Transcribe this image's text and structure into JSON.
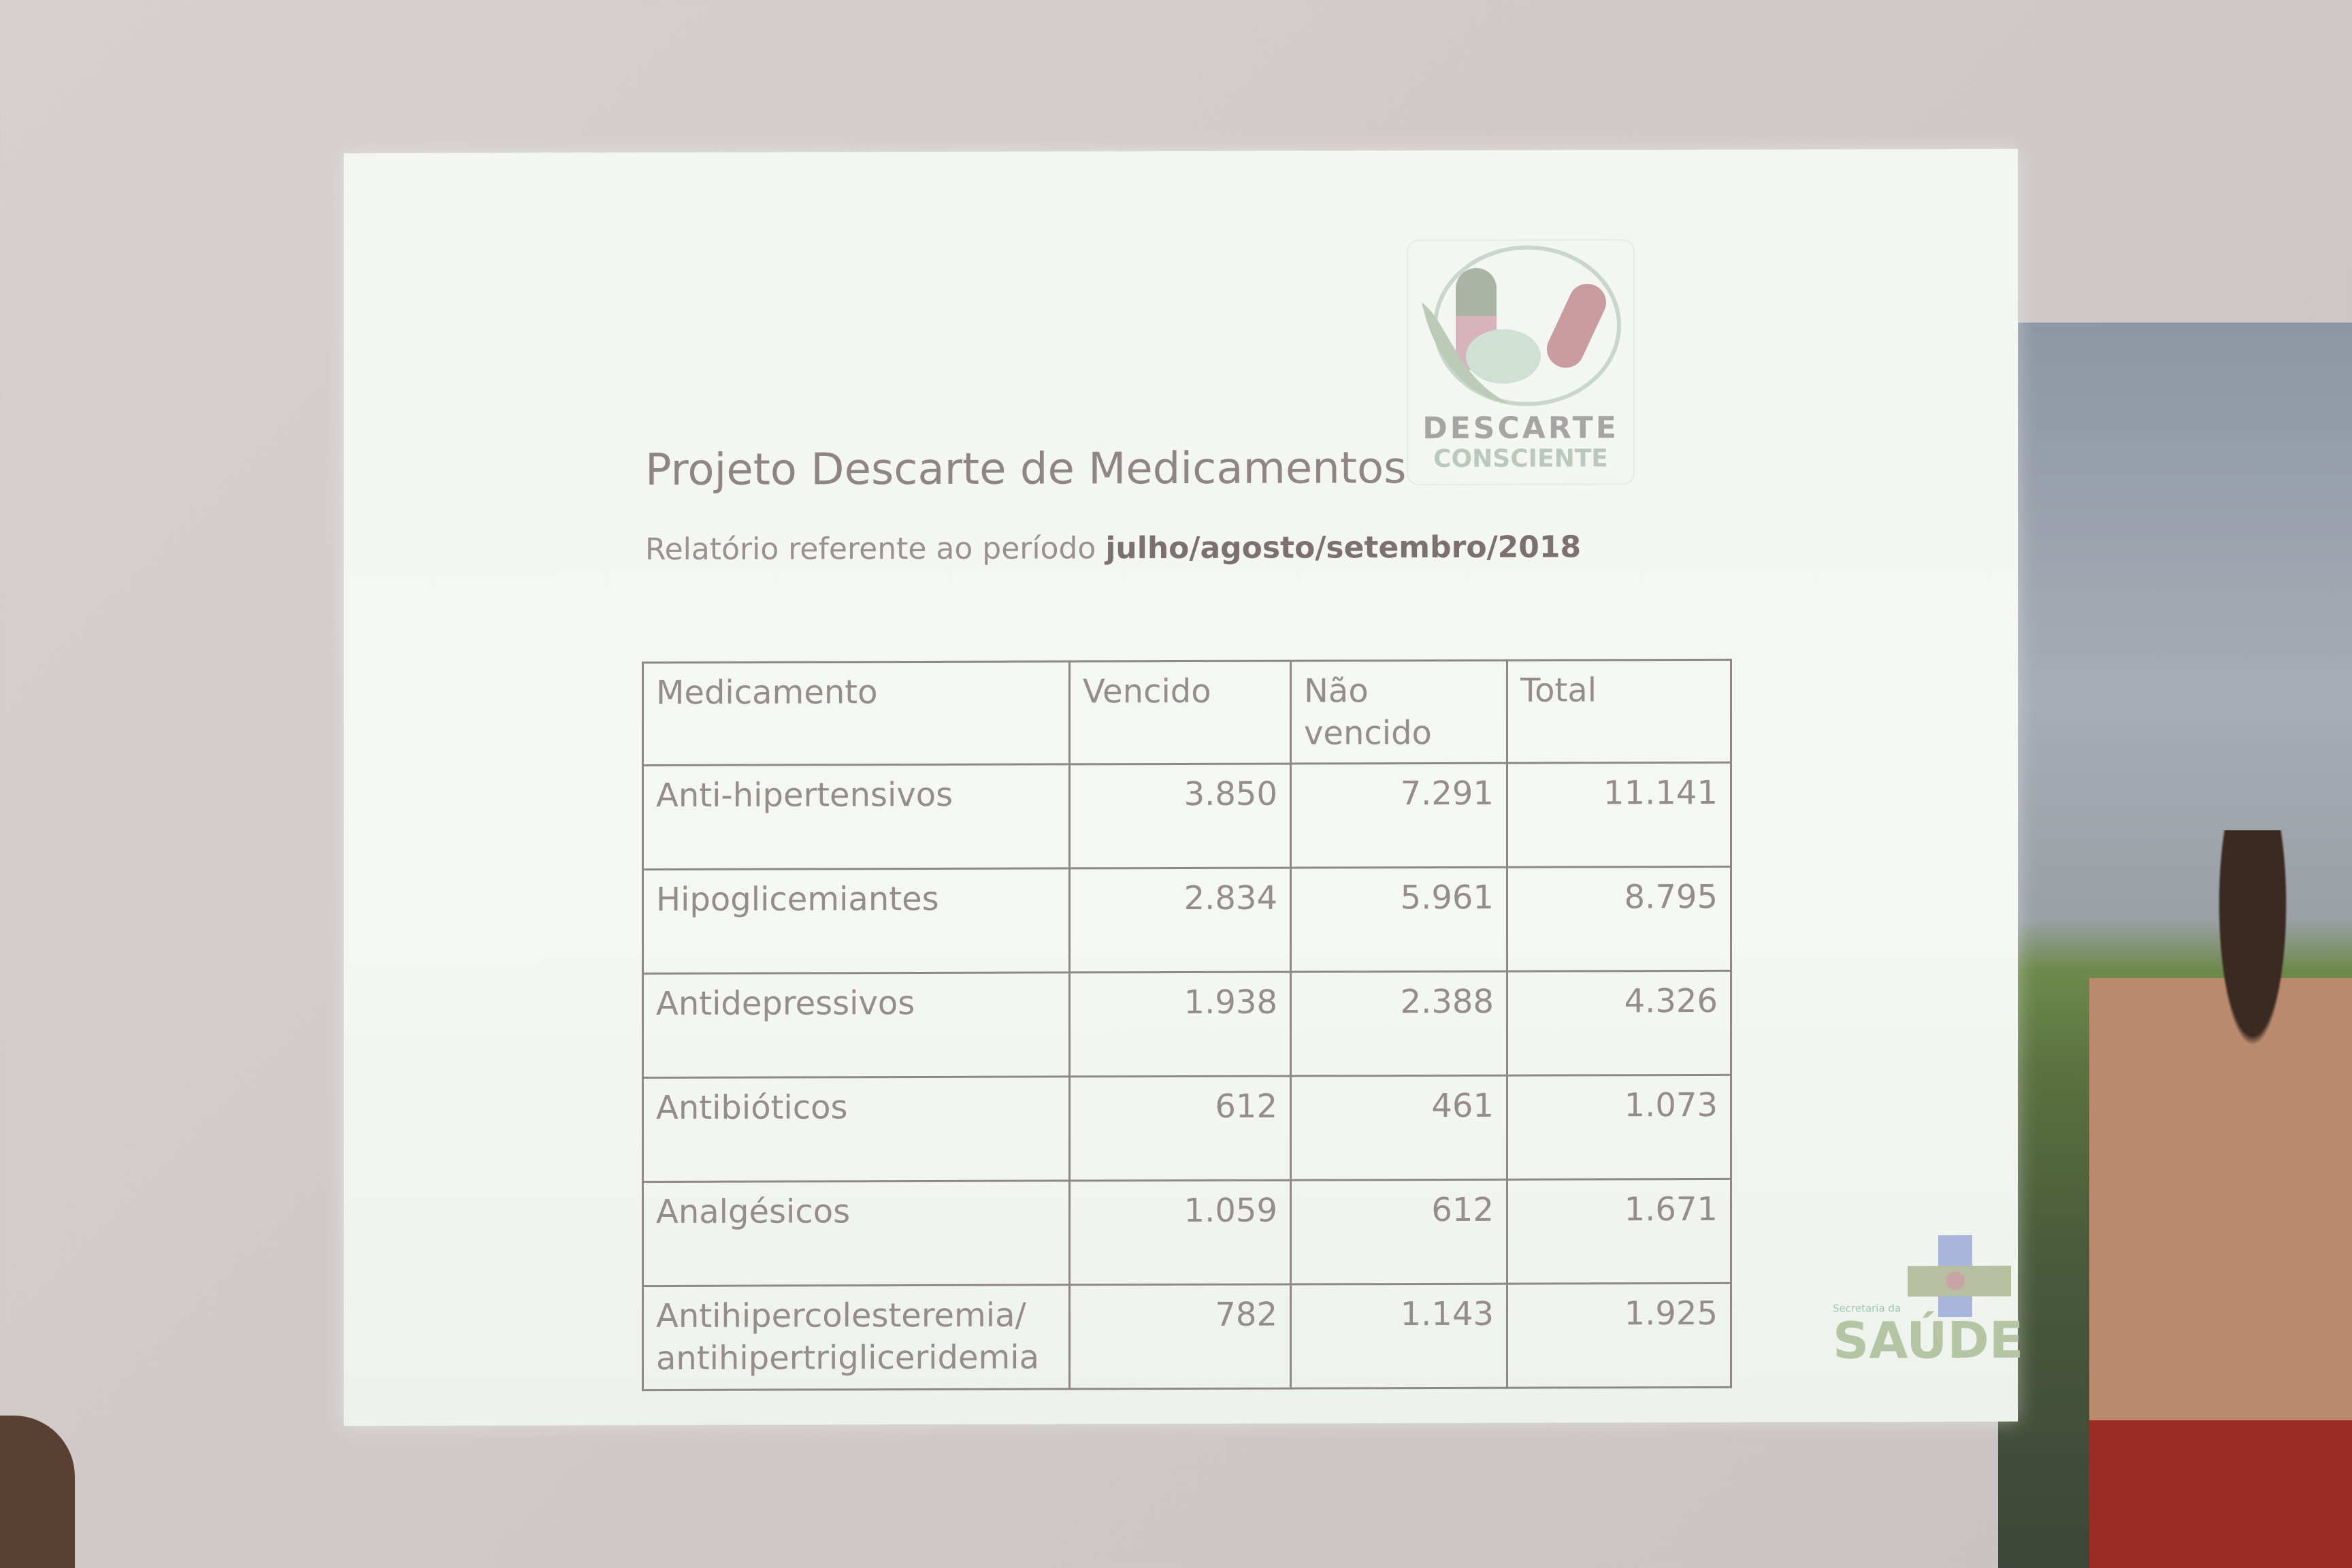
{
  "slide": {
    "title": "Projeto Descarte de Medicamentos",
    "subtitle_prefix": "Relatório referente ao período",
    "subtitle_period": "julho/agosto/setembro/2018",
    "logo_top": {
      "line1": "DESCARTE",
      "line2": "CONSCIENTE",
      "colors": {
        "green": "#8fa894",
        "red": "#c08a8e"
      }
    },
    "logo_bottom": {
      "line1": "Secretaria da",
      "line2": "SAÚDE"
    },
    "table": {
      "headers": [
        "Medicamento",
        "Vencido",
        "Não vencido",
        "Total"
      ],
      "rows": [
        {
          "name": "Anti-hipertensivos",
          "vencido": "3.850",
          "nao_vencido": "7.291",
          "total": "11.141"
        },
        {
          "name": "Hipoglicemiantes",
          "vencido": "2.834",
          "nao_vencido": "5.961",
          "total": "8.795"
        },
        {
          "name": "Antidepressivos",
          "vencido": "1.938",
          "nao_vencido": "2.388",
          "total": "4.326"
        },
        {
          "name": "Antibióticos",
          "vencido": "612",
          "nao_vencido": "461",
          "total": "1.073"
        },
        {
          "name": "Analgésicos",
          "vencido": "1.059",
          "nao_vencido": "612",
          "total": "1.671"
        },
        {
          "name": "Antihipercolesteremia/ antihipertrigliceridemia",
          "vencido": "782",
          "nao_vencido": "1.143",
          "total": "1.925"
        }
      ]
    }
  }
}
